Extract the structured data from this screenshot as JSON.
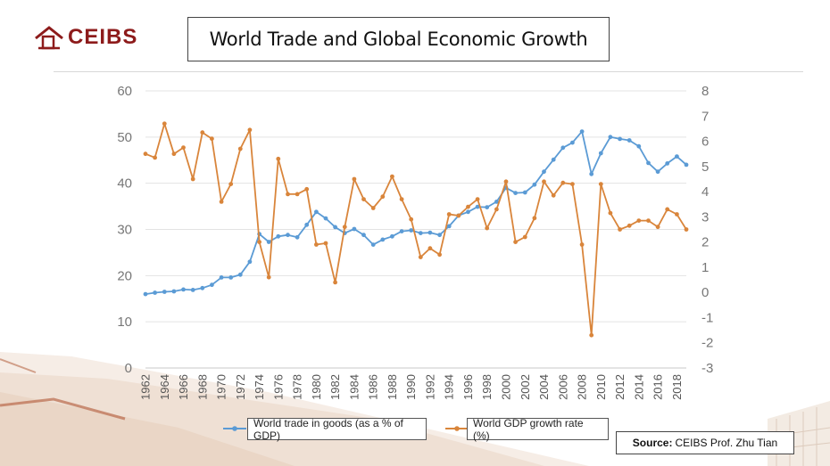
{
  "header": {
    "logo_text": "CEIBS",
    "title": "World Trade and Global Economic Growth"
  },
  "source": {
    "label": "Source:",
    "text": "CEIBS Prof. Zhu Tian"
  },
  "colors": {
    "trade_series": "#5b9bd5",
    "gdp_series": "#d9853b",
    "logo": "#8d1b1b"
  },
  "chart_data": {
    "type": "line",
    "title": "World Trade and Global Economic Growth",
    "xlabel": "",
    "ylabel_left": "",
    "ylabel_right": "",
    "ylim_left": [
      0,
      60
    ],
    "ylim_right": [
      -3,
      8
    ],
    "yticks_left": [
      "0",
      "10",
      "20",
      "30",
      "40",
      "50",
      "60"
    ],
    "yticks_right": [
      "-3",
      "-2",
      "-1",
      "0",
      "1",
      "2",
      "3",
      "4",
      "5",
      "6",
      "7",
      "8"
    ],
    "xtick_labels": [
      "1962",
      "1964",
      "1966",
      "1968",
      "1970",
      "1972",
      "1974",
      "1976",
      "1978",
      "1980",
      "1982",
      "1984",
      "1986",
      "1988",
      "1990",
      "1992",
      "1994",
      "1996",
      "1998",
      "2000",
      "2002",
      "2004",
      "2006",
      "2008",
      "2010",
      "2012",
      "2014",
      "2016",
      "2018"
    ],
    "grid": true,
    "legend_position": "bottom",
    "x": [
      1962,
      1963,
      1964,
      1965,
      1966,
      1967,
      1968,
      1969,
      1970,
      1971,
      1972,
      1973,
      1974,
      1975,
      1976,
      1977,
      1978,
      1979,
      1980,
      1981,
      1982,
      1983,
      1984,
      1985,
      1986,
      1987,
      1988,
      1989,
      1990,
      1991,
      1992,
      1993,
      1994,
      1995,
      1996,
      1997,
      1998,
      1999,
      2000,
      2001,
      2002,
      2003,
      2004,
      2005,
      2006,
      2007,
      2008,
      2009,
      2010,
      2011,
      2012,
      2013,
      2014,
      2015,
      2016,
      2017,
      2018,
      2019
    ],
    "series": [
      {
        "name": "World trade in goods (as a % of GDP)",
        "axis": "left",
        "values": [
          16,
          16.3,
          16.5,
          16.6,
          17,
          16.9,
          17.3,
          18,
          19.6,
          19.6,
          20.2,
          23,
          29,
          27.3,
          28.5,
          28.8,
          28.3,
          31,
          33.8,
          32.4,
          30.5,
          29.2,
          30.1,
          28.8,
          26.7,
          27.8,
          28.5,
          29.6,
          29.8,
          29.2,
          29.3,
          28.8,
          30.7,
          33,
          33.8,
          34.9,
          34.8,
          36,
          39,
          37.9,
          38,
          39.7,
          42.5,
          45.1,
          47.7,
          48.8,
          51.2,
          42,
          46.5,
          50,
          49.6,
          49.3,
          48,
          44.4,
          42.5,
          44.3,
          45.8,
          44
        ]
      },
      {
        "name": "World GDP growth rate (%)",
        "axis": "right",
        "values": [
          5.5,
          5.35,
          6.7,
          5.5,
          5.75,
          4.5,
          6.35,
          6.1,
          3.6,
          4.3,
          5.7,
          6.45,
          2,
          0.6,
          5.3,
          3.9,
          3.9,
          4.1,
          1.9,
          1.95,
          0.4,
          2.6,
          4.5,
          3.7,
          3.35,
          3.8,
          4.6,
          3.7,
          2.9,
          1.4,
          1.75,
          1.5,
          3.1,
          3.05,
          3.4,
          3.7,
          2.55,
          3.3,
          4.4,
          2,
          2.2,
          2.95,
          4.4,
          3.85,
          4.35,
          4.3,
          1.9,
          -1.7,
          4.3,
          3.15,
          2.5,
          2.65,
          2.85,
          2.85,
          2.6,
          3.3,
          3.1,
          2.5
        ]
      }
    ]
  }
}
